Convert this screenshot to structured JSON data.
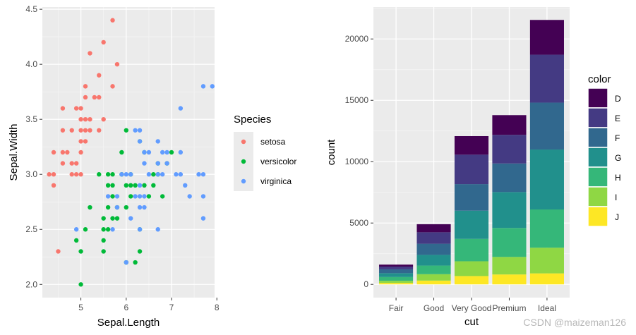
{
  "chart_data": [
    {
      "type": "scatter",
      "xlabel": "Sepal.Length",
      "ylabel": "Sepal.Width",
      "xlim": [
        4.15,
        7.95
      ],
      "ylim": [
        1.88,
        4.52
      ],
      "xticks": [
        "5",
        "6",
        "7",
        "8"
      ],
      "yticks": [
        "2.0",
        "2.5",
        "3.0",
        "3.5",
        "4.0",
        "4.5"
      ],
      "legend": {
        "title": "Species",
        "position": "right"
      },
      "series": [
        {
          "name": "setosa",
          "color": "#F8766D",
          "points": [
            [
              4.3,
              3.0
            ],
            [
              4.4,
              2.9
            ],
            [
              4.4,
              3.0
            ],
            [
              4.4,
              3.2
            ],
            [
              4.5,
              2.3
            ],
            [
              4.6,
              3.1
            ],
            [
              4.6,
              3.2
            ],
            [
              4.6,
              3.4
            ],
            [
              4.6,
              3.6
            ],
            [
              4.7,
              3.2
            ],
            [
              4.8,
              3.0
            ],
            [
              4.8,
              3.1
            ],
            [
              4.8,
              3.4
            ],
            [
              4.9,
              3.0
            ],
            [
              4.9,
              3.1
            ],
            [
              4.9,
              3.6
            ],
            [
              5.0,
              3.0
            ],
            [
              5.0,
              3.2
            ],
            [
              5.0,
              3.3
            ],
            [
              5.0,
              3.4
            ],
            [
              5.0,
              3.5
            ],
            [
              5.0,
              3.6
            ],
            [
              5.1,
              3.3
            ],
            [
              5.1,
              3.4
            ],
            [
              5.1,
              3.5
            ],
            [
              5.1,
              3.7
            ],
            [
              5.1,
              3.8
            ],
            [
              5.2,
              3.4
            ],
            [
              5.2,
              3.5
            ],
            [
              5.2,
              4.1
            ],
            [
              5.3,
              3.7
            ],
            [
              5.4,
              3.4
            ],
            [
              5.4,
              3.7
            ],
            [
              5.4,
              3.9
            ],
            [
              5.5,
              3.5
            ],
            [
              5.5,
              4.2
            ],
            [
              5.7,
              3.8
            ],
            [
              5.7,
              4.4
            ],
            [
              5.8,
              4.0
            ]
          ]
        },
        {
          "name": "versicolor",
          "color": "#00BA38",
          "points": [
            [
              4.9,
              2.4
            ],
            [
              5.0,
              2.0
            ],
            [
              5.0,
              2.3
            ],
            [
              5.1,
              2.5
            ],
            [
              5.2,
              2.7
            ],
            [
              5.4,
              3.0
            ],
            [
              5.5,
              2.3
            ],
            [
              5.5,
              2.4
            ],
            [
              5.5,
              2.5
            ],
            [
              5.5,
              2.6
            ],
            [
              5.6,
              2.5
            ],
            [
              5.6,
              2.7
            ],
            [
              5.6,
              2.9
            ],
            [
              5.6,
              3.0
            ],
            [
              5.7,
              2.6
            ],
            [
              5.7,
              2.8
            ],
            [
              5.7,
              2.9
            ],
            [
              5.7,
              3.0
            ],
            [
              5.8,
              2.6
            ],
            [
              5.8,
              2.7
            ],
            [
              5.9,
              3.0
            ],
            [
              5.9,
              3.2
            ],
            [
              6.0,
              2.2
            ],
            [
              6.0,
              2.7
            ],
            [
              6.0,
              2.9
            ],
            [
              6.0,
              3.4
            ],
            [
              6.1,
              2.8
            ],
            [
              6.1,
              2.9
            ],
            [
              6.1,
              3.0
            ],
            [
              6.2,
              2.2
            ],
            [
              6.2,
              2.9
            ],
            [
              6.3,
              2.3
            ],
            [
              6.3,
              2.5
            ],
            [
              6.3,
              3.3
            ],
            [
              6.4,
              2.9
            ],
            [
              6.4,
              3.2
            ],
            [
              6.5,
              2.8
            ],
            [
              6.6,
              2.9
            ],
            [
              6.6,
              3.0
            ],
            [
              6.7,
              3.0
            ],
            [
              6.7,
              3.1
            ],
            [
              6.8,
              2.8
            ],
            [
              6.9,
              3.1
            ],
            [
              7.0,
              3.2
            ]
          ]
        },
        {
          "name": "virginica",
          "color": "#619CFF",
          "points": [
            [
              4.9,
              2.5
            ],
            [
              5.6,
              2.8
            ],
            [
              5.7,
              2.5
            ],
            [
              5.8,
              2.7
            ],
            [
              5.8,
              2.8
            ],
            [
              5.9,
              3.0
            ],
            [
              6.0,
              2.2
            ],
            [
              6.0,
              3.0
            ],
            [
              6.1,
              2.6
            ],
            [
              6.1,
              3.0
            ],
            [
              6.2,
              2.8
            ],
            [
              6.2,
              3.4
            ],
            [
              6.3,
              2.5
            ],
            [
              6.3,
              2.7
            ],
            [
              6.3,
              2.8
            ],
            [
              6.3,
              2.9
            ],
            [
              6.3,
              3.3
            ],
            [
              6.3,
              3.4
            ],
            [
              6.4,
              2.7
            ],
            [
              6.4,
              2.8
            ],
            [
              6.4,
              3.1
            ],
            [
              6.4,
              3.2
            ],
            [
              6.5,
              3.0
            ],
            [
              6.5,
              3.2
            ],
            [
              6.7,
              2.5
            ],
            [
              6.7,
              3.0
            ],
            [
              6.7,
              3.1
            ],
            [
              6.7,
              3.3
            ],
            [
              6.8,
              3.0
            ],
            [
              6.8,
              3.2
            ],
            [
              6.9,
              3.1
            ],
            [
              6.9,
              3.2
            ],
            [
              7.1,
              3.0
            ],
            [
              7.2,
              3.0
            ],
            [
              7.2,
              3.2
            ],
            [
              7.2,
              3.6
            ],
            [
              7.3,
              2.9
            ],
            [
              7.4,
              2.8
            ],
            [
              7.6,
              3.0
            ],
            [
              7.7,
              2.6
            ],
            [
              7.7,
              2.8
            ],
            [
              7.7,
              3.0
            ],
            [
              7.7,
              3.8
            ],
            [
              7.9,
              3.8
            ]
          ]
        }
      ]
    },
    {
      "type": "bar",
      "stacked": true,
      "xlabel": "cut",
      "ylabel": "count",
      "ylim": [
        -1080,
        22600
      ],
      "yticks": [
        "0",
        "5000",
        "10000",
        "15000",
        "20000"
      ],
      "categories": [
        "Fair",
        "Good",
        "Very Good",
        "Premium",
        "Ideal"
      ],
      "legend": {
        "title": "color",
        "position": "right"
      },
      "series": [
        {
          "name": "J",
          "color": "#FDE725",
          "values": [
            119,
            307,
            678,
            808,
            896
          ]
        },
        {
          "name": "I",
          "color": "#8FD744",
          "values": [
            175,
            522,
            1204,
            1428,
            2093
          ]
        },
        {
          "name": "H",
          "color": "#35B779",
          "values": [
            303,
            702,
            1824,
            2360,
            3115
          ]
        },
        {
          "name": "G",
          "color": "#21908C",
          "values": [
            314,
            871,
            2299,
            2924,
            4884
          ]
        },
        {
          "name": "F",
          "color": "#31688E",
          "values": [
            312,
            909,
            2164,
            2331,
            3826
          ]
        },
        {
          "name": "E",
          "color": "#443A83",
          "values": [
            224,
            933,
            2400,
            2337,
            3903
          ]
        },
        {
          "name": "D",
          "color": "#440154",
          "values": [
            163,
            662,
            1513,
            1603,
            2834
          ]
        }
      ]
    }
  ],
  "watermark": "CSDN @maizeman126"
}
